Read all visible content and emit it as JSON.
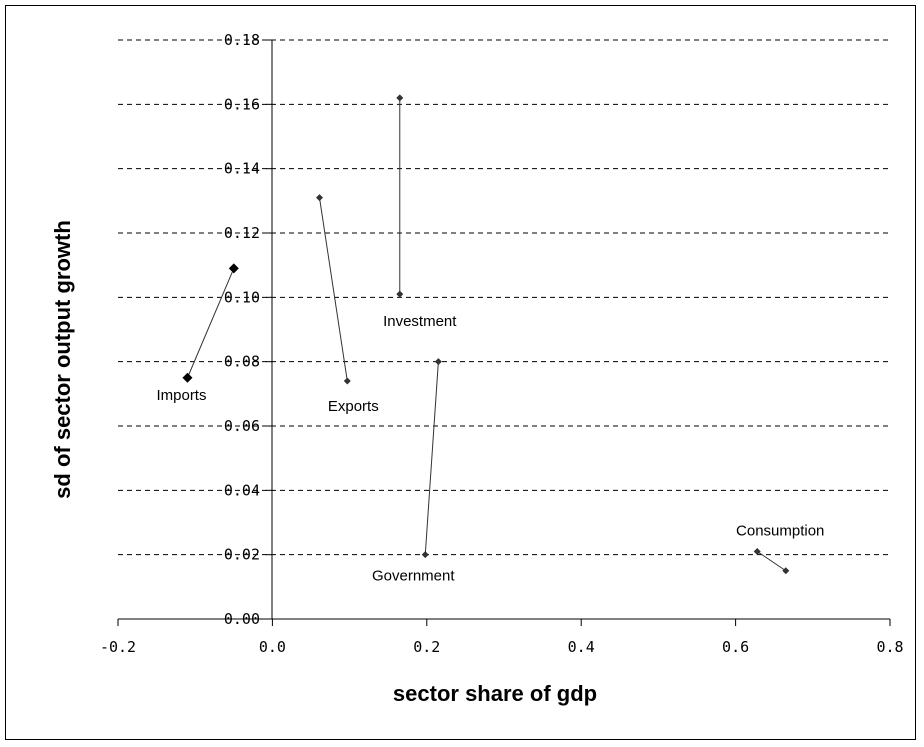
{
  "chart_data": {
    "type": "scatter",
    "title": "",
    "xlabel": "sector share of gdp",
    "ylabel": "sd of sector output growth",
    "xlim": [
      -0.2,
      0.8
    ],
    "ylim": [
      0.0,
      0.18
    ],
    "x_ticks": [
      "-0.2",
      "0.0",
      "0.2",
      "0.4",
      "0.6",
      "0.8"
    ],
    "y_ticks": [
      "0.00",
      "0.02",
      "0.04",
      "0.06",
      "0.08",
      "0.10",
      "0.12",
      "0.14",
      "0.16",
      "0.18"
    ],
    "grid": "horizontal dashed",
    "marker_color": "#333333",
    "series": [
      {
        "label": "Imports",
        "points": [
          [
            -0.11,
            0.075
          ],
          [
            -0.05,
            0.109
          ]
        ]
      },
      {
        "label": "Exports",
        "points": [
          [
            0.061,
            0.131
          ],
          [
            0.097,
            0.074
          ]
        ]
      },
      {
        "label": "Investment",
        "points": [
          [
            0.165,
            0.162
          ],
          [
            0.165,
            0.101
          ]
        ]
      },
      {
        "label": "Government",
        "points": [
          [
            0.198,
            0.02
          ],
          [
            0.215,
            0.08
          ]
        ]
      },
      {
        "label": "Consumption",
        "points": [
          [
            0.628,
            0.021
          ],
          [
            0.665,
            0.015
          ]
        ]
      }
    ]
  }
}
